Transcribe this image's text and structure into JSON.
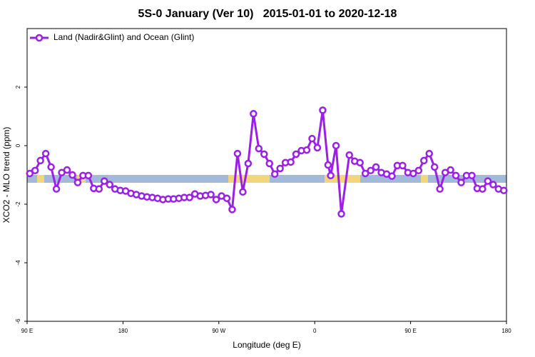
{
  "chart_data": {
    "type": "line",
    "title": "5S-0 January (Ver 10)   2015-01-01 to 2020-12-18",
    "x_label": "Longitude (deg E)",
    "y_label": "XCO2 - MLO trend (ppm)",
    "xlim": [
      90,
      540
    ],
    "xticks": [
      {
        "value": 90,
        "label": "90 E"
      },
      180,
      {
        "value": 270,
        "label": "90 W"
      },
      {
        "value": 360,
        "label": "0"
      },
      {
        "value": 450,
        "label": "90 E"
      },
      {
        "value": 540,
        "label": "180"
      }
    ],
    "ylim": [
      -6,
      4
    ],
    "yticks": [
      -6,
      -4,
      -2,
      0,
      2
    ],
    "legend": "top-left",
    "x": [
      92.5,
      97.5,
      102.5,
      107.5,
      112.5,
      117.5,
      122.5,
      127.5,
      132.5,
      137.5,
      142.5,
      147.5,
      152.5,
      157.5,
      162.5,
      167.5,
      172.5,
      177.5,
      182.5,
      187.5,
      192.5,
      197.5,
      202.5,
      207.5,
      212.5,
      217.5,
      222.5,
      227.5,
      232.5,
      237.5,
      242.5,
      247.5,
      252.5,
      257.5,
      262.5,
      267.5,
      272.5,
      277.5,
      282.5,
      287.5,
      292.5,
      297.5,
      302.5,
      307.5,
      312.5,
      317.5,
      322.5,
      327.5,
      332.5,
      337.5,
      342.5,
      347.5,
      352.5,
      357.5,
      362.5,
      367.5,
      372.5,
      375,
      380,
      385,
      392.5,
      397.5,
      402.5,
      407.5,
      412.5,
      417.5,
      422.5,
      427.5,
      432.5,
      437.5,
      442.5,
      447.5,
      452.5,
      457.5,
      462.5,
      467.5,
      472.5,
      477.5,
      482.5,
      487.5,
      492.5,
      497.5,
      502.5,
      507.5,
      512.5,
      517.5,
      522.5,
      527.5,
      532.5,
      537.5
    ],
    "series": [
      {
        "name": "Land (Nadir&Glint) and Ocean (Glint)",
        "color": "#9b1fe8",
        "values": [
          -0.95,
          -0.85,
          -0.51,
          -0.27,
          -0.73,
          -1.48,
          -0.92,
          -0.83,
          -1.0,
          -1.26,
          -1.02,
          -1.02,
          -1.46,
          -1.48,
          -1.21,
          -1.33,
          -1.48,
          -1.53,
          -1.55,
          -1.63,
          -1.67,
          -1.72,
          -1.75,
          -1.77,
          -1.8,
          -1.84,
          -1.82,
          -1.82,
          -1.8,
          -1.77,
          -1.77,
          -1.65,
          -1.72,
          -1.7,
          -1.67,
          -1.84,
          -1.72,
          -1.8,
          -2.18,
          -0.27,
          -1.58,
          -0.61,
          1.09,
          -0.1,
          -0.29,
          -0.61,
          -0.97,
          -0.78,
          -0.58,
          -0.56,
          -0.29,
          -0.17,
          -0.15,
          0.24,
          -0.07,
          1.21,
          -0.66,
          -1.02,
          0.0,
          -2.33,
          -0.32,
          -0.53,
          -0.58,
          -0.95,
          -0.85,
          -0.73,
          -0.92,
          -0.97,
          -1.04,
          -0.68,
          -0.68,
          -0.92,
          -0.95,
          -0.85,
          -0.51,
          -0.27,
          -0.73,
          -1.48,
          -0.92,
          -0.83,
          -1.02,
          -1.26,
          -1.02,
          -1.02,
          -1.46,
          -1.48,
          -1.21,
          -1.33,
          -1.48,
          -1.53
        ]
      }
    ]
  }
}
